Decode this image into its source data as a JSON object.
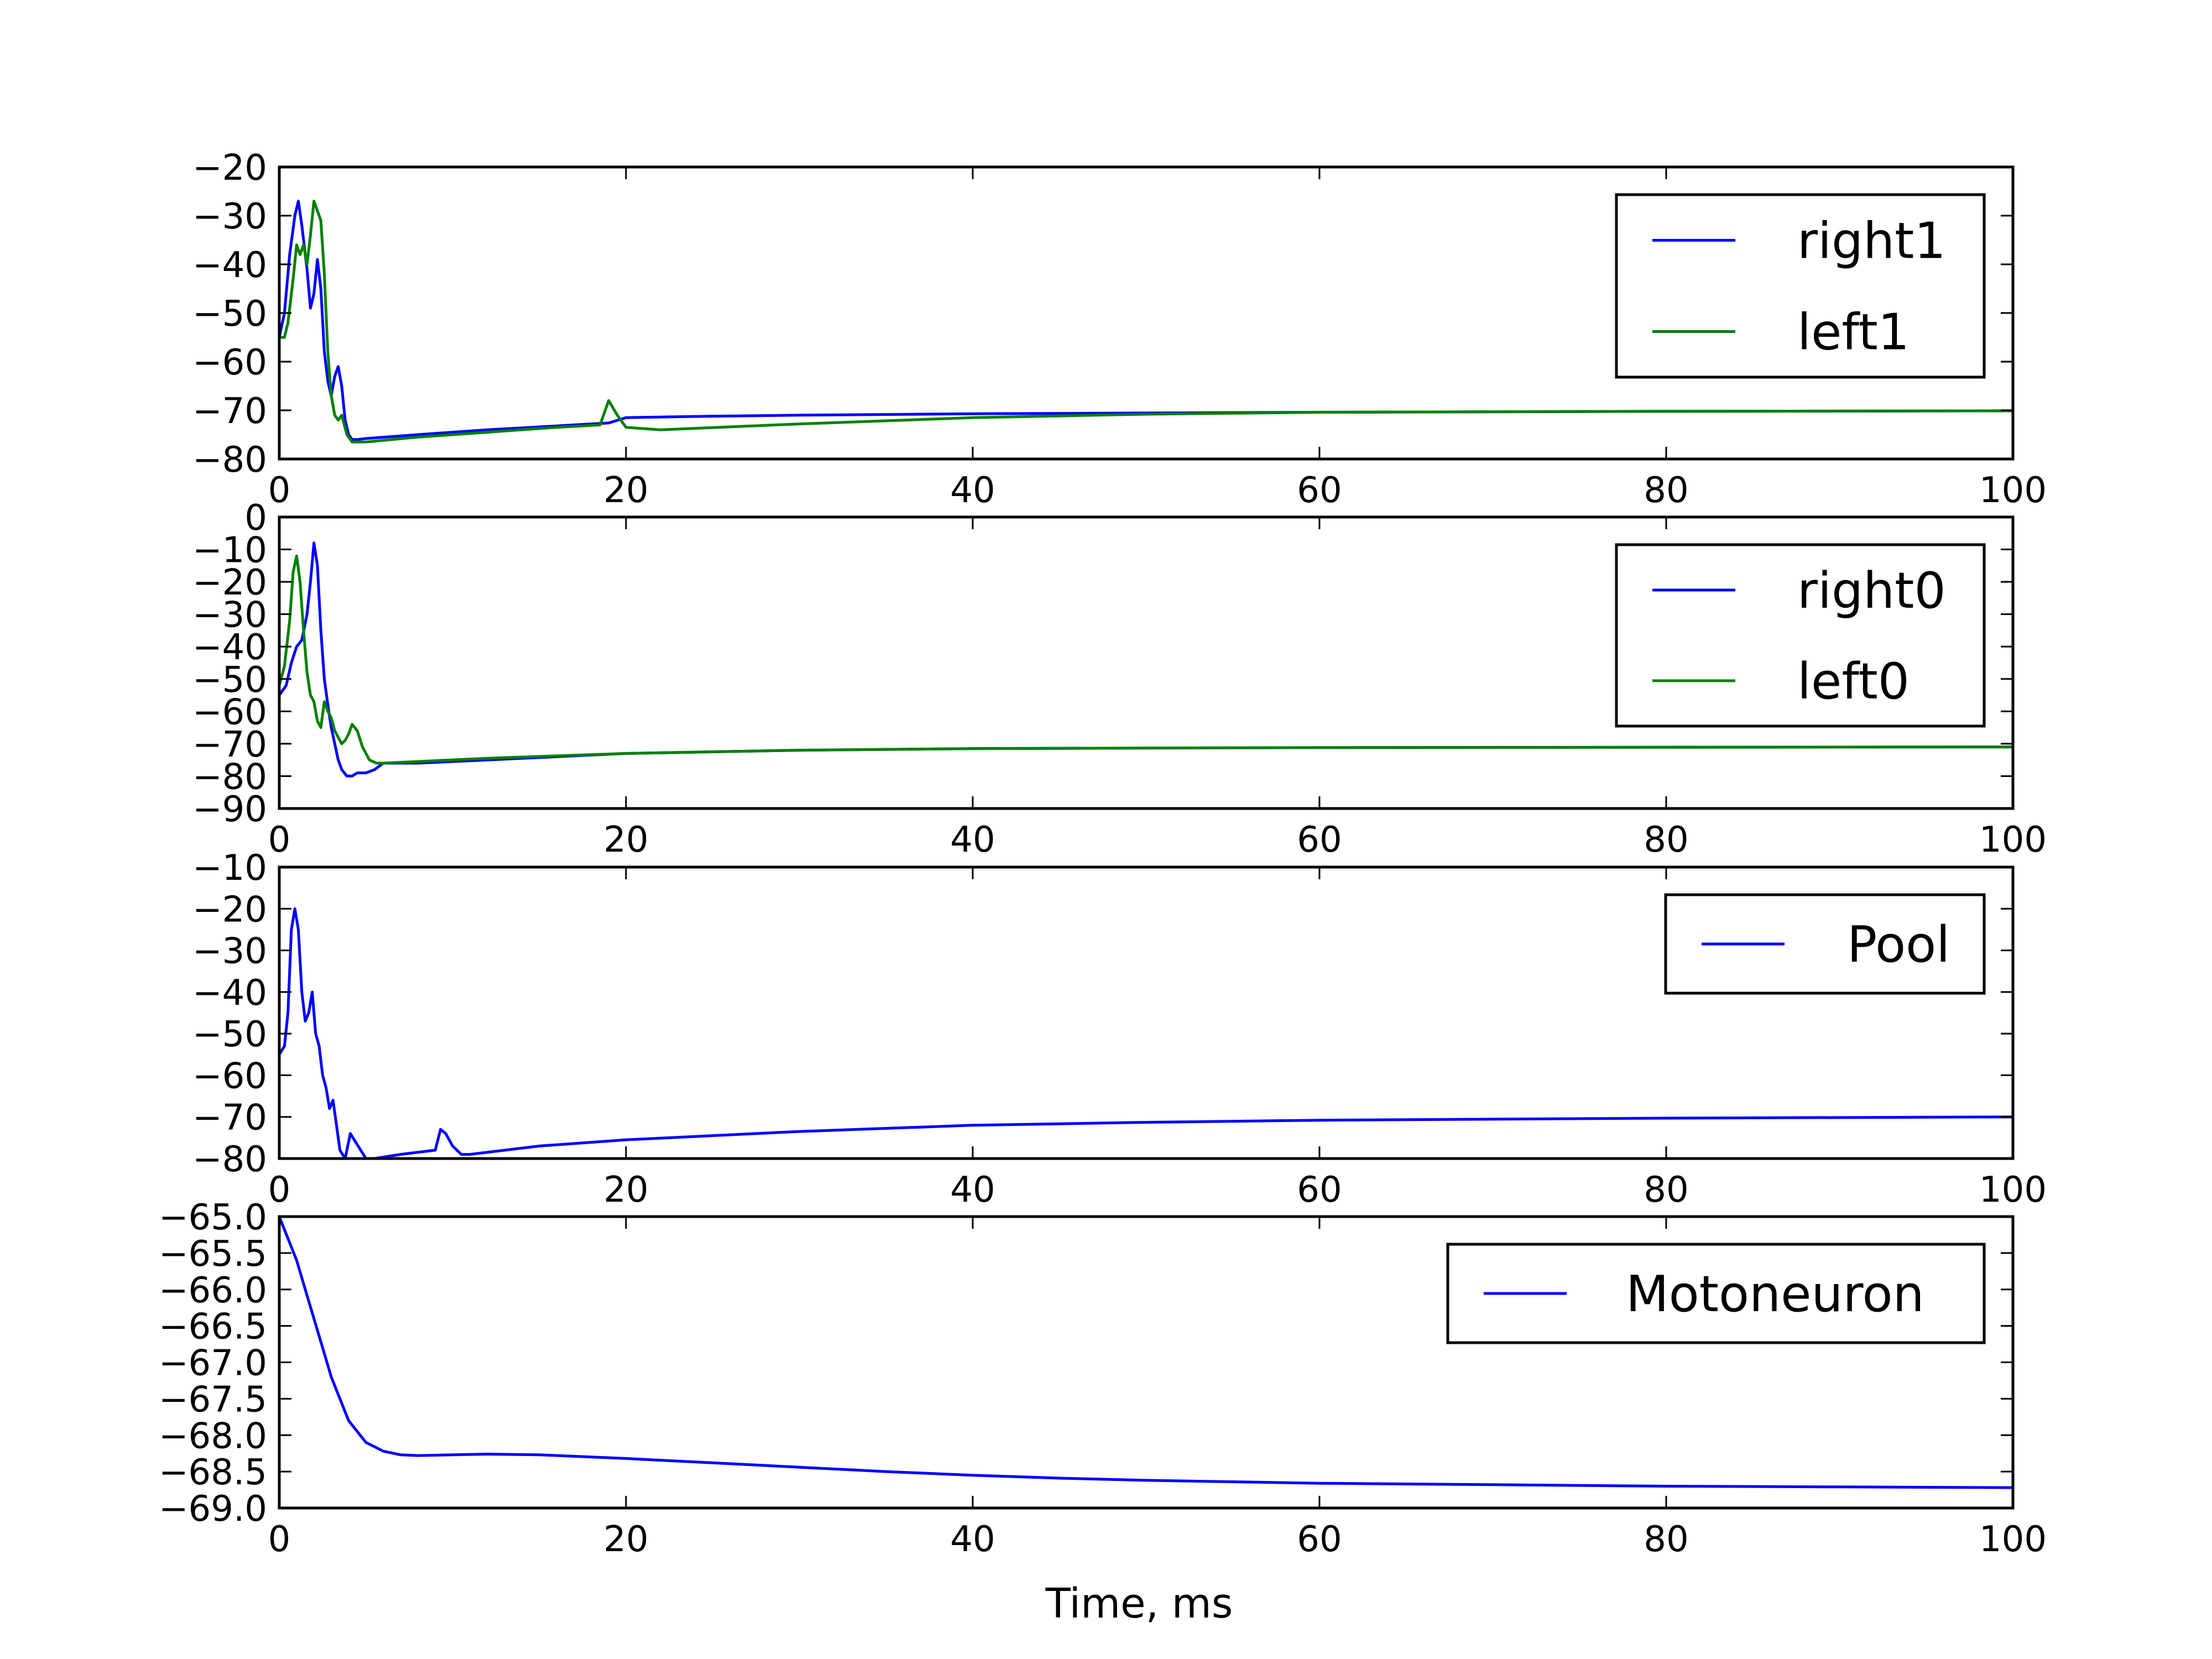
{
  "figure": {
    "xlabel": "Time, ms"
  },
  "chart_data": [
    {
      "type": "line",
      "xlim": [
        0,
        100
      ],
      "ylim": [
        -80,
        -20
      ],
      "xticks": [
        0,
        20,
        40,
        60,
        80,
        100
      ],
      "yticks": [
        -20,
        -30,
        -40,
        -50,
        -60,
        -70,
        -80
      ],
      "xtick_labels": [
        "0",
        "20",
        "40",
        "60",
        "80",
        "100"
      ],
      "ytick_labels": [
        "−20",
        "−30",
        "−40",
        "−50",
        "−60",
        "−70",
        "−80"
      ],
      "legend_position": "upper-right",
      "series": [
        {
          "name": "right1",
          "color": "#0000ff",
          "x": [
            0,
            0.3,
            0.6,
            0.9,
            1.1,
            1.3,
            1.6,
            1.8,
            2.0,
            2.2,
            2.4,
            2.6,
            2.8,
            3.0,
            3.2,
            3.4,
            3.6,
            3.8,
            4.0,
            4.2,
            4.5,
            5,
            8,
            12,
            16,
            19,
            20,
            25,
            30,
            40,
            60,
            80,
            100
          ],
          "y": [
            -55,
            -50,
            -38,
            -30,
            -27,
            -32,
            -41,
            -49,
            -46,
            -39,
            -45,
            -58,
            -64,
            -67,
            -63,
            -61,
            -65,
            -72,
            -75,
            -76,
            -76,
            -75.8,
            -75,
            -74,
            -73.2,
            -72.6,
            -71.5,
            -71.2,
            -71.0,
            -70.7,
            -70.4,
            -70.2,
            -70.1
          ]
        },
        {
          "name": "left1",
          "color": "#008000",
          "x": [
            0,
            0.3,
            0.5,
            0.8,
            1.0,
            1.2,
            1.4,
            1.6,
            1.8,
            2.0,
            2.2,
            2.4,
            2.6,
            2.8,
            3.0,
            3.2,
            3.4,
            3.6,
            3.9,
            4.2,
            5,
            8,
            12,
            16,
            18.5,
            19.0,
            19.5,
            20,
            22,
            30,
            40,
            50,
            60,
            80,
            100
          ],
          "y": [
            -55,
            -55,
            -52,
            -43,
            -36,
            -38,
            -36,
            -40,
            -34,
            -27,
            -29,
            -31,
            -42,
            -58,
            -67,
            -71,
            -72,
            -71,
            -75,
            -76.5,
            -76.5,
            -75.5,
            -74.5,
            -73.5,
            -73,
            -68,
            -71,
            -73.5,
            -74,
            -72.8,
            -71.5,
            -70.8,
            -70.4,
            -70.2,
            -70.1
          ]
        }
      ]
    },
    {
      "type": "line",
      "xlim": [
        0,
        100
      ],
      "ylim": [
        -90,
        0
      ],
      "xticks": [
        0,
        20,
        40,
        60,
        80,
        100
      ],
      "yticks": [
        0,
        -10,
        -20,
        -30,
        -40,
        -50,
        -60,
        -70,
        -80,
        -90
      ],
      "xtick_labels": [
        "0",
        "20",
        "40",
        "60",
        "80",
        "100"
      ],
      "ytick_labels": [
        "0",
        "−10",
        "−20",
        "−30",
        "−40",
        "−50",
        "−60",
        "−70",
        "−80",
        "−90"
      ],
      "legend_position": "upper-right",
      "series": [
        {
          "name": "right0",
          "color": "#0000ff",
          "x": [
            0,
            0.4,
            0.7,
            1.0,
            1.3,
            1.6,
            1.8,
            2.0,
            2.2,
            2.4,
            2.6,
            2.8,
            3.0,
            3.2,
            3.4,
            3.6,
            3.9,
            4.2,
            4.5,
            5.0,
            5.5,
            6.0,
            8,
            12,
            20,
            30,
            40,
            60,
            80,
            100
          ],
          "y": [
            -55,
            -52,
            -45,
            -40,
            -38,
            -30,
            -20,
            -8,
            -15,
            -35,
            -50,
            -58,
            -65,
            -70,
            -75,
            -78,
            -80,
            -80,
            -79,
            -79,
            -78,
            -76,
            -76,
            -75,
            -73,
            -72,
            -71.5,
            -71.2,
            -71.1,
            -71
          ],
          "note_hidden": false
        },
        {
          "name": "left0",
          "color": "#008000",
          "x": [
            0,
            0.3,
            0.6,
            0.8,
            1.0,
            1.2,
            1.4,
            1.6,
            1.8,
            2.0,
            2.2,
            2.4,
            2.6,
            2.8,
            3.0,
            3.2,
            3.4,
            3.6,
            3.8,
            4.0,
            4.2,
            4.5,
            4.8,
            5.2,
            5.6,
            6.0,
            8,
            12,
            20,
            30,
            40,
            60,
            80,
            100
          ],
          "y": [
            -52,
            -46,
            -32,
            -17,
            -12,
            -20,
            -35,
            -48,
            -55,
            -57,
            -63,
            -65,
            -57,
            -60,
            -62,
            -66,
            -68,
            -70,
            -69,
            -67,
            -64,
            -66,
            -71,
            -75,
            -76,
            -76,
            -75.5,
            -74.5,
            -73,
            -72,
            -71.5,
            -71.2,
            -71.1,
            -71
          ]
        }
      ]
    },
    {
      "type": "line",
      "xlim": [
        0,
        100
      ],
      "ylim": [
        -80,
        -10
      ],
      "xticks": [
        0,
        20,
        40,
        60,
        80,
        100
      ],
      "yticks": [
        -10,
        -20,
        -30,
        -40,
        -50,
        -60,
        -70,
        -80
      ],
      "xtick_labels": [
        "0",
        "20",
        "40",
        "60",
        "80",
        "100"
      ],
      "ytick_labels": [
        "−10",
        "−20",
        "−30",
        "−40",
        "−50",
        "−60",
        "−70",
        "−80"
      ],
      "legend_position": "upper-right",
      "series": [
        {
          "name": "Pool",
          "color": "#0000ff",
          "x": [
            0,
            0.3,
            0.5,
            0.7,
            0.9,
            1.1,
            1.3,
            1.5,
            1.7,
            1.9,
            2.1,
            2.3,
            2.5,
            2.7,
            2.9,
            3.1,
            3.3,
            3.5,
            3.8,
            4.1,
            4.4,
            4.7,
            5.0,
            5.5,
            7,
            9,
            9.3,
            9.6,
            10,
            10.5,
            11,
            15,
            20,
            30,
            40,
            50,
            60,
            80,
            100
          ],
          "y": [
            -55,
            -53,
            -45,
            -25,
            -20,
            -25,
            -40,
            -47,
            -45,
            -40,
            -50,
            -53,
            -60,
            -63,
            -68,
            -66,
            -72,
            -78,
            -80,
            -74,
            -76,
            -78,
            -80,
            -80,
            -79,
            -78,
            -73,
            -74,
            -77,
            -79,
            -79,
            -77,
            -75.5,
            -73.5,
            -72,
            -71.3,
            -70.8,
            -70.3,
            -70
          ]
        }
      ]
    },
    {
      "type": "line",
      "xlim": [
        0,
        100
      ],
      "ylim": [
        -69.0,
        -65.0
      ],
      "xticks": [
        0,
        20,
        40,
        60,
        80,
        100
      ],
      "yticks": [
        -65.0,
        -65.5,
        -66.0,
        -66.5,
        -67.0,
        -67.5,
        -68.0,
        -68.5,
        -69.0
      ],
      "xtick_labels": [
        "0",
        "20",
        "40",
        "60",
        "80",
        "100"
      ],
      "ytick_labels": [
        "−65.0",
        "−65.5",
        "−66.0",
        "−66.5",
        "−67.0",
        "−67.5",
        "−68.0",
        "−68.5",
        "−69.0"
      ],
      "legend_position": "upper-right",
      "xlabel": "Time, ms",
      "series": [
        {
          "name": "Motoneuron",
          "color": "#0000ff",
          "x": [
            0,
            0.5,
            1,
            1.5,
            2,
            2.5,
            3,
            3.5,
            4,
            5,
            6,
            7,
            8,
            10,
            12,
            15,
            20,
            25,
            30,
            35,
            40,
            45,
            50,
            60,
            70,
            80,
            90,
            100
          ],
          "y": [
            -65.0,
            -65.3,
            -65.6,
            -66.0,
            -66.4,
            -66.8,
            -67.2,
            -67.5,
            -67.8,
            -68.1,
            -68.22,
            -68.27,
            -68.28,
            -68.27,
            -68.26,
            -68.27,
            -68.32,
            -68.38,
            -68.44,
            -68.5,
            -68.55,
            -68.59,
            -68.62,
            -68.66,
            -68.68,
            -68.7,
            -68.71,
            -68.72
          ]
        }
      ]
    }
  ]
}
